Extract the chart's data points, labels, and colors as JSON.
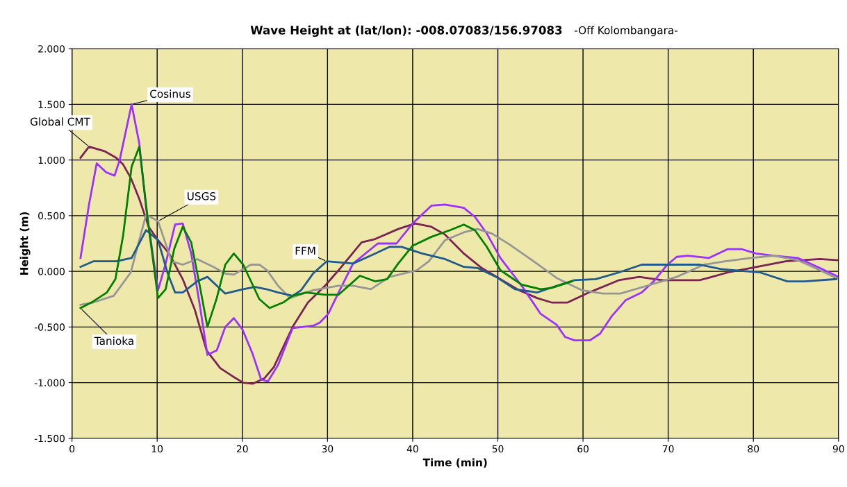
{
  "chart_data": {
    "type": "line",
    "title": "Wave Height at (lat/lon): -008.07083/156.97083",
    "subtitle": "-Off Kolombangara-",
    "xlabel": "Time (min)",
    "ylabel": "Height (m)",
    "xlim": [
      0,
      90
    ],
    "xticks": [
      0,
      10,
      20,
      30,
      40,
      50,
      60,
      70,
      80,
      90
    ],
    "ylim": [
      -1.5,
      2.0
    ],
    "yticks": [
      {
        "value": -1.5,
        "label": "-1.500"
      },
      {
        "value": -1.0,
        "label": "-1.000"
      },
      {
        "value": -0.5,
        "label": "-0.500"
      },
      {
        "value": 0,
        "label": "0.000"
      },
      {
        "value": 0.5,
        "label": "0.500"
      },
      {
        "value": 1.0,
        "label": "1.000"
      },
      {
        "value": 1.5,
        "label": "1.500"
      },
      {
        "value": 2.0,
        "label": "2.000"
      }
    ],
    "grid": true,
    "legend": false,
    "marker": "none",
    "line_style": "solid",
    "series": [
      {
        "name": "Global CMT",
        "color": "#7b2352",
        "x": [
          1,
          2,
          3.8,
          5.2,
          6,
          6.9,
          7.9,
          9,
          10.1,
          11.4,
          13,
          14.4,
          15.8,
          17.4,
          18.8,
          20.1,
          21.2,
          22.6,
          23.7,
          25.9,
          27.7,
          29.7,
          31.3,
          34,
          35.6,
          38.3,
          40.3,
          42.2,
          43.8,
          46,
          48.1,
          50.3,
          52.5,
          54.6,
          56.3,
          58.2,
          60.7,
          64.2,
          66.6,
          69.3,
          73.7,
          77,
          79.7,
          83.8,
          87.8,
          90
        ],
        "values": [
          1.02,
          1.12,
          1.08,
          1.02,
          0.96,
          0.84,
          0.65,
          0.4,
          0.28,
          0.16,
          -0.07,
          -0.34,
          -0.71,
          -0.87,
          -0.94,
          -1.0,
          -1.01,
          -0.96,
          -0.86,
          -0.5,
          -0.28,
          -0.13,
          0.01,
          0.26,
          0.29,
          0.38,
          0.43,
          0.4,
          0.33,
          0.16,
          0.03,
          -0.07,
          -0.17,
          -0.24,
          -0.28,
          -0.28,
          -0.19,
          -0.08,
          -0.05,
          -0.08,
          -0.08,
          -0.01,
          0.03,
          0.09,
          0.11,
          0.1
        ]
      },
      {
        "name": "Cosinus",
        "color": "#9b30ff",
        "x": [
          1,
          2,
          2.9,
          4,
          5,
          5.6,
          7,
          7.9,
          8.7,
          10.1,
          11,
          12.1,
          13,
          14,
          15,
          15.9,
          17,
          18,
          19,
          20,
          21.2,
          22.2,
          23,
          24.2,
          25.9,
          28.3,
          29.1,
          30.1,
          31.3,
          33,
          35.9,
          38.1,
          40,
          42.2,
          43.8,
          46,
          47.3,
          48.7,
          50.3,
          52.8,
          55,
          56.9,
          57.9,
          59,
          60.8,
          62,
          63.4,
          65,
          66.9,
          68.3,
          69.9,
          71,
          72.3,
          74.8,
          77,
          78.6,
          80.3,
          82.4,
          85.2,
          87.8,
          90
        ],
        "values": [
          0.12,
          0.6,
          0.97,
          0.89,
          0.86,
          1.0,
          1.5,
          1.15,
          0.57,
          -0.17,
          0.07,
          0.42,
          0.43,
          0.16,
          -0.3,
          -0.75,
          -0.71,
          -0.5,
          -0.42,
          -0.52,
          -0.74,
          -0.97,
          -0.99,
          -0.84,
          -0.51,
          -0.49,
          -0.46,
          -0.38,
          -0.19,
          0.07,
          0.25,
          0.25,
          0.43,
          0.59,
          0.6,
          0.57,
          0.49,
          0.34,
          0.12,
          -0.13,
          -0.38,
          -0.48,
          -0.59,
          -0.62,
          -0.62,
          -0.56,
          -0.4,
          -0.26,
          -0.19,
          -0.09,
          0.06,
          0.13,
          0.14,
          0.12,
          0.2,
          0.2,
          0.16,
          0.14,
          0.12,
          0.03,
          -0.05
        ]
      },
      {
        "name": "USGS",
        "color": "#969696",
        "x": [
          1,
          2.5,
          4.9,
          6.9,
          7.9,
          8.7,
          10.1,
          11.7,
          13,
          14.7,
          16.6,
          18,
          19,
          21,
          22,
          22.9,
          24.2,
          25.6,
          28.3,
          31.3,
          33,
          35.1,
          37.3,
          39.5,
          40.5,
          41.9,
          43.8,
          46,
          47.6,
          49.3,
          51.4,
          54.2,
          56.9,
          59.9,
          62.3,
          64.4,
          67.5,
          71,
          74.2,
          76.7,
          79.7,
          82.4,
          85.2,
          87.8,
          90
        ],
        "values": [
          -0.3,
          -0.28,
          -0.22,
          -0.01,
          0.28,
          0.51,
          0.45,
          0.09,
          0.06,
          0.11,
          0.04,
          -0.02,
          -0.03,
          0.06,
          0.06,
          0.01,
          -0.13,
          -0.24,
          -0.17,
          -0.13,
          -0.13,
          -0.16,
          -0.05,
          -0.01,
          0.01,
          0.09,
          0.28,
          0.35,
          0.38,
          0.34,
          0.24,
          0.09,
          -0.06,
          -0.17,
          -0.2,
          -0.2,
          -0.13,
          -0.05,
          0.06,
          0.09,
          0.12,
          0.14,
          0.1,
          0.01,
          -0.07
        ]
      },
      {
        "name": "FFM",
        "color": "#1f5a8c",
        "x": [
          1,
          2.5,
          5.2,
          7,
          8.7,
          10.1,
          11.2,
          12.1,
          13,
          14.7,
          15.9,
          18,
          20.1,
          21.5,
          22.8,
          24.2,
          25.9,
          26.9,
          28.3,
          29.9,
          33,
          35.6,
          37.3,
          38.7,
          41.1,
          43.8,
          46,
          47.6,
          49.8,
          52,
          54.6,
          56.9,
          59,
          61.5,
          64.2,
          66.9,
          73.7,
          76.2,
          77.8,
          80.8,
          84,
          86,
          89.7
        ],
        "values": [
          0.04,
          0.09,
          0.09,
          0.12,
          0.37,
          0.28,
          -0.01,
          -0.19,
          -0.19,
          -0.09,
          -0.05,
          -0.2,
          -0.16,
          -0.14,
          -0.16,
          -0.19,
          -0.22,
          -0.17,
          -0.02,
          0.09,
          0.07,
          0.16,
          0.22,
          0.22,
          0.16,
          0.11,
          0.04,
          0.03,
          -0.05,
          -0.16,
          -0.19,
          -0.13,
          -0.08,
          -0.07,
          -0.01,
          0.06,
          0.06,
          0.02,
          0.01,
          -0.01,
          -0.09,
          -0.09,
          -0.07
        ]
      },
      {
        "name": "Tanioka",
        "color": "#008000",
        "x": [
          1,
          2.5,
          4.1,
          5.1,
          6,
          7,
          7.9,
          9,
          10.1,
          11,
          12,
          13,
          14,
          15,
          15.9,
          17,
          18,
          19,
          20.1,
          22,
          23.2,
          24.8,
          25.9,
          27.5,
          29.7,
          31.3,
          33.8,
          35.6,
          37,
          38.3,
          40,
          42.2,
          44.4,
          46,
          47.3,
          48.7,
          50.3,
          52.8,
          55,
          56.3,
          58.7
        ],
        "values": [
          -0.33,
          -0.27,
          -0.19,
          -0.07,
          0.32,
          0.94,
          1.12,
          0.4,
          -0.24,
          -0.16,
          0.2,
          0.4,
          0.26,
          -0.13,
          -0.5,
          -0.24,
          0.06,
          0.16,
          0.06,
          -0.25,
          -0.33,
          -0.28,
          -0.22,
          -0.19,
          -0.21,
          -0.21,
          -0.04,
          -0.09,
          -0.07,
          0.07,
          0.23,
          0.31,
          0.37,
          0.42,
          0.37,
          0.22,
          0.01,
          -0.12,
          -0.16,
          -0.15,
          -0.09
        ]
      }
    ]
  }
}
